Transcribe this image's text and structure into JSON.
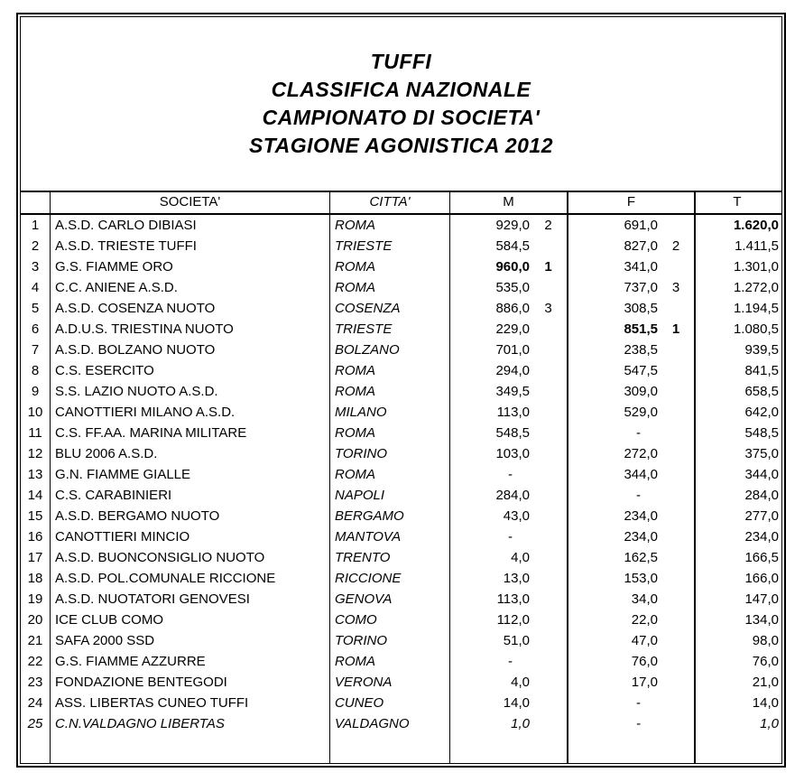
{
  "title": {
    "lines": [
      "TUFFI",
      "CLASSIFICA NAZIONALE",
      "CAMPIONATO DI SOCIETA'",
      "STAGIONE AGONISTICA 2012"
    ]
  },
  "table": {
    "headers": {
      "rank": "",
      "societa": "SOCIETA'",
      "citta": "CITTA'",
      "m": "M",
      "f": "F",
      "t": "T"
    },
    "rows": [
      {
        "rank": "1",
        "societa": "A.S.D. CARLO DIBIASI",
        "citta": "ROMA",
        "m": "929,0",
        "m_rank": "2",
        "f": "691,0",
        "f_rank": "",
        "t": "1.620,0",
        "t_bold": true
      },
      {
        "rank": "2",
        "societa": "A.S.D. TRIESTE TUFFI",
        "citta": "TRIESTE",
        "m": "584,5",
        "m_rank": "",
        "f": "827,0",
        "f_rank": "2",
        "t": "1.411,5"
      },
      {
        "rank": "3",
        "societa": "G.S. FIAMME ORO",
        "citta": "ROMA",
        "m": "960,0",
        "m_rank": "1",
        "f": "341,0",
        "f_rank": "",
        "t": "1.301,0",
        "m_bold": true
      },
      {
        "rank": "4",
        "societa": "C.C. ANIENE A.S.D.",
        "citta": "ROMA",
        "m": "535,0",
        "m_rank": "",
        "f": "737,0",
        "f_rank": "3",
        "t": "1.272,0"
      },
      {
        "rank": "5",
        "societa": "A.S.D. COSENZA NUOTO",
        "citta": "COSENZA",
        "m": "886,0",
        "m_rank": "3",
        "f": "308,5",
        "f_rank": "",
        "t": "1.194,5"
      },
      {
        "rank": "6",
        "societa": "A.D.U.S. TRIESTINA NUOTO",
        "citta": "TRIESTE",
        "m": "229,0",
        "m_rank": "",
        "f": "851,5",
        "f_rank": "1",
        "t": "1.080,5",
        "f_bold": true
      },
      {
        "rank": "7",
        "societa": "A.S.D. BOLZANO NUOTO",
        "citta": "BOLZANO",
        "m": "701,0",
        "m_rank": "",
        "f": "238,5",
        "f_rank": "",
        "t": "939,5"
      },
      {
        "rank": "8",
        "societa": "C.S. ESERCITO",
        "citta": "ROMA",
        "m": "294,0",
        "m_rank": "",
        "f": "547,5",
        "f_rank": "",
        "t": "841,5"
      },
      {
        "rank": "9",
        "societa": "S.S. LAZIO NUOTO A.S.D.",
        "citta": "ROMA",
        "m": "349,5",
        "m_rank": "",
        "f": "309,0",
        "f_rank": "",
        "t": "658,5"
      },
      {
        "rank": "10",
        "societa": "CANOTTIERI MILANO A.S.D.",
        "citta": "MILANO",
        "m": "113,0",
        "m_rank": "",
        "f": "529,0",
        "f_rank": "",
        "t": "642,0"
      },
      {
        "rank": "11",
        "societa": "C.S. FF.AA. MARINA MILITARE",
        "citta": "ROMA",
        "m": "548,5",
        "m_rank": "",
        "f": "-",
        "f_rank": "",
        "t": "548,5"
      },
      {
        "rank": "12",
        "societa": "BLU 2006 A.S.D.",
        "citta": "TORINO",
        "m": "103,0",
        "m_rank": "",
        "f": "272,0",
        "f_rank": "",
        "t": "375,0"
      },
      {
        "rank": "13",
        "societa": "G.N. FIAMME GIALLE",
        "citta": "ROMA",
        "m": "-",
        "m_rank": "",
        "f": "344,0",
        "f_rank": "",
        "t": "344,0"
      },
      {
        "rank": "14",
        "societa": "C.S. CARABINIERI",
        "citta": "NAPOLI",
        "m": "284,0",
        "m_rank": "",
        "f": "-",
        "f_rank": "",
        "t": "284,0"
      },
      {
        "rank": "15",
        "societa": "A.S.D. BERGAMO NUOTO",
        "citta": "BERGAMO",
        "m": "43,0",
        "m_rank": "",
        "f": "234,0",
        "f_rank": "",
        "t": "277,0"
      },
      {
        "rank": "16",
        "societa": "CANOTTIERI MINCIO",
        "citta": "MANTOVA",
        "m": "-",
        "m_rank": "",
        "f": "234,0",
        "f_rank": "",
        "t": "234,0"
      },
      {
        "rank": "17",
        "societa": "A.S.D. BUONCONSIGLIO NUOTO",
        "citta": "TRENTO",
        "m": "4,0",
        "m_rank": "",
        "f": "162,5",
        "f_rank": "",
        "t": "166,5"
      },
      {
        "rank": "18",
        "societa": "A.S.D. POL.COMUNALE RICCIONE",
        "citta": "RICCIONE",
        "m": "13,0",
        "m_rank": "",
        "f": "153,0",
        "f_rank": "",
        "t": "166,0"
      },
      {
        "rank": "19",
        "societa": "A.S.D. NUOTATORI GENOVESI",
        "citta": "GENOVA",
        "m": "113,0",
        "m_rank": "",
        "f": "34,0",
        "f_rank": "",
        "t": "147,0"
      },
      {
        "rank": "20",
        "societa": "ICE CLUB COMO",
        "citta": "COMO",
        "m": "112,0",
        "m_rank": "",
        "f": "22,0",
        "f_rank": "",
        "t": "134,0"
      },
      {
        "rank": "21",
        "societa": "SAFA 2000 SSD",
        "citta": "TORINO",
        "m": "51,0",
        "m_rank": "",
        "f": "47,0",
        "f_rank": "",
        "t": "98,0"
      },
      {
        "rank": "22",
        "societa": "G.S. FIAMME AZZURRE",
        "citta": "ROMA",
        "m": "-",
        "m_rank": "",
        "f": "76,0",
        "f_rank": "",
        "t": "76,0"
      },
      {
        "rank": "23",
        "societa": "FONDAZIONE BENTEGODI",
        "citta": "VERONA",
        "m": "4,0",
        "m_rank": "",
        "f": "17,0",
        "f_rank": "",
        "t": "21,0"
      },
      {
        "rank": "24",
        "societa": "ASS. LIBERTAS CUNEO TUFFI",
        "citta": "CUNEO",
        "m": "14,0",
        "m_rank": "",
        "f": "-",
        "f_rank": "",
        "t": "14,0"
      },
      {
        "rank": "25",
        "societa": "C.N.VALDAGNO LIBERTAS",
        "citta": "VALDAGNO",
        "m": "1,0",
        "m_rank": "",
        "f": "-",
        "f_rank": "",
        "t": "1,0",
        "italic": true
      }
    ]
  },
  "colors": {
    "text": "#000000",
    "border": "#000000",
    "background": "#ffffff"
  }
}
